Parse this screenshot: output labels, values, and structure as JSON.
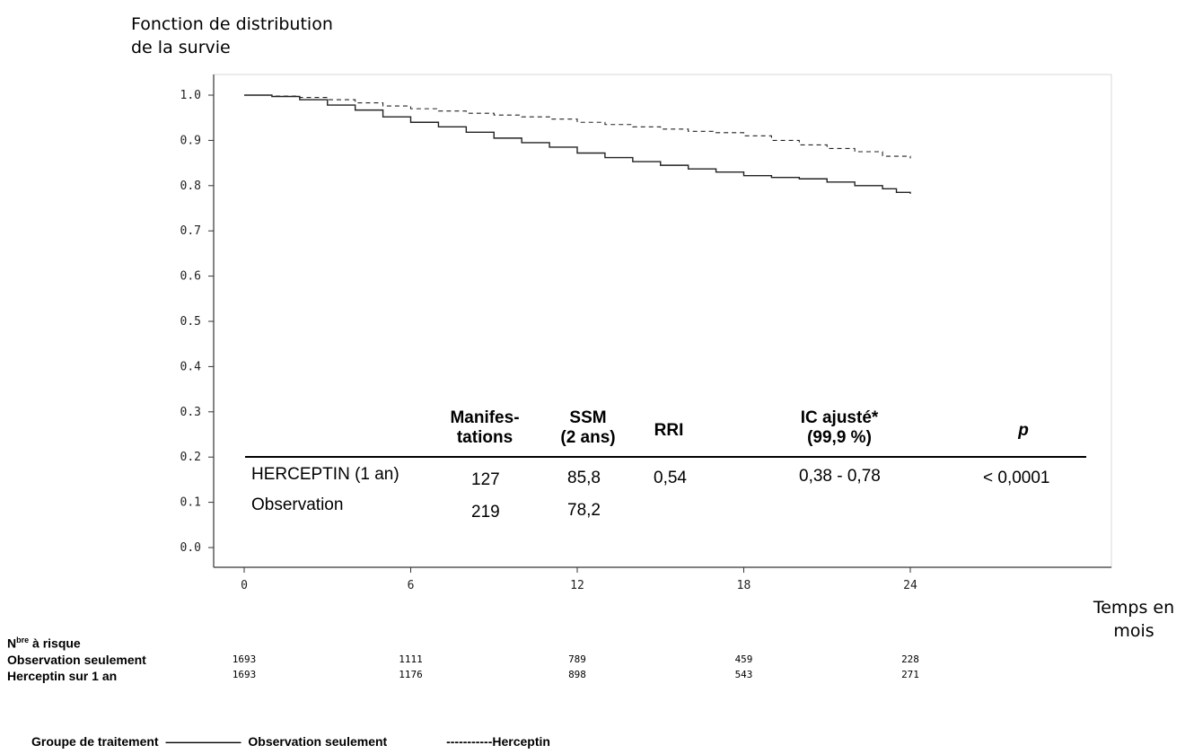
{
  "chart_data": {
    "type": "line",
    "title": "",
    "ylabel_lines": [
      "Fonction de distribution",
      "de la survie"
    ],
    "xlabel": "Temps en mois",
    "xlim": [
      0,
      24
    ],
    "ylim": [
      0.0,
      1.0
    ],
    "y_ticks": [
      "0.0",
      "0.1",
      "0.2",
      "0.3",
      "0.4",
      "0.5",
      "0.6",
      "0.7",
      "0.8",
      "0.9",
      "1.0"
    ],
    "x_ticks": [
      "0",
      "6",
      "12",
      "18",
      "24"
    ],
    "grid": false,
    "series": [
      {
        "name": "Observation seulement",
        "style": "solid",
        "x": [
          0,
          1,
          2,
          3,
          4,
          5,
          6,
          7,
          8,
          9,
          10,
          11,
          12,
          13,
          14,
          15,
          16,
          17,
          18,
          19,
          20,
          21,
          22,
          23,
          23.5,
          24
        ],
        "y": [
          1.0,
          0.997,
          0.99,
          0.978,
          0.967,
          0.952,
          0.94,
          0.93,
          0.918,
          0.905,
          0.895,
          0.885,
          0.872,
          0.862,
          0.853,
          0.845,
          0.837,
          0.83,
          0.822,
          0.818,
          0.815,
          0.808,
          0.8,
          0.793,
          0.785,
          0.782
        ]
      },
      {
        "name": "Herceptin",
        "style": "dashed",
        "x": [
          0,
          1,
          2,
          3,
          4,
          5,
          6,
          7,
          8,
          9,
          10,
          11,
          12,
          13,
          14,
          15,
          16,
          17,
          18,
          19,
          20,
          21,
          22,
          23,
          24
        ],
        "y": [
          1.0,
          0.998,
          0.995,
          0.99,
          0.983,
          0.976,
          0.97,
          0.965,
          0.96,
          0.956,
          0.952,
          0.947,
          0.94,
          0.935,
          0.93,
          0.925,
          0.92,
          0.917,
          0.91,
          0.9,
          0.89,
          0.882,
          0.875,
          0.865,
          0.86
        ]
      }
    ],
    "stats_table": {
      "headers": [
        [
          "Manifes-",
          "tations"
        ],
        [
          "SSM",
          "(2 ans)"
        ],
        [
          "RRI"
        ],
        [
          "IC ajusté*",
          "(99,9 %)"
        ],
        [
          "p"
        ]
      ],
      "rows": [
        [
          "HERCEPTIN (1 an)",
          "127",
          "85,8",
          "0,54",
          "0,38 - 0,78",
          "< 0,0001"
        ],
        [
          "Observation",
          "219",
          "78,2",
          "",
          "",
          ""
        ]
      ]
    },
    "at_risk": {
      "title_main": "N",
      "title_sup": "bre",
      "title_rest": " à risque",
      "rows": [
        {
          "label": "Observation seulement",
          "values": [
            "1693",
            "1111",
            "789",
            "459",
            "228"
          ]
        },
        {
          "label": "Herceptin sur 1 an",
          "values": [
            "1693",
            "1176",
            "898",
            "543",
            "271"
          ]
        }
      ]
    },
    "legend": {
      "prefix": "Groupe de traitement",
      "solid_line": "——————",
      "solid_label": "Observation seulement",
      "dashed_label": "-----------Herceptin"
    }
  }
}
